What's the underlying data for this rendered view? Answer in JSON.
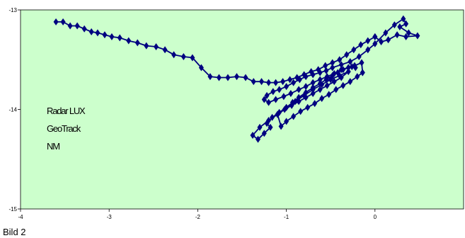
{
  "caption": "Bild 2",
  "chart_data": {
    "type": "scatter",
    "title": "",
    "xlabel": "",
    "ylabel": "",
    "xlim": [
      -4,
      1
    ],
    "ylim": [
      -15,
      -13
    ],
    "x_ticks": [
      -4,
      -3,
      -2,
      -1,
      0
    ],
    "y_ticks": [
      -13,
      -14,
      -15
    ],
    "x_tick_labels": [
      "-4",
      "-3",
      "-2",
      "-1",
      "0"
    ],
    "y_tick_labels": [
      "-13",
      "-14",
      "-15"
    ],
    "grid": false,
    "plot_background": "#ccffcc",
    "series_color": "#000080",
    "annotations": [
      "Radar LUX",
      "GeoTrack",
      "NM"
    ],
    "series": [
      {
        "x": [
          -3.6,
          -3.52,
          -3.44,
          -3.36,
          -3.28,
          -3.2,
          -3.13,
          -3.05,
          -2.97,
          -2.88,
          -2.78,
          -2.68,
          -2.58,
          -2.47,
          -2.37,
          -2.27,
          -2.16,
          -2.06,
          -1.96,
          -1.86,
          -1.76,
          -1.66,
          -1.56,
          -1.46,
          -1.37,
          -1.28,
          -1.2,
          -1.12,
          -1.04,
          -0.96,
          -0.88,
          -0.8,
          -0.72,
          -0.64,
          -0.56,
          -0.48,
          -0.4,
          -0.32,
          -0.24,
          -0.16,
          -0.08,
          0.0
        ],
        "y": [
          -13.12,
          -13.12,
          -13.16,
          -13.16,
          -13.19,
          -13.22,
          -13.23,
          -13.25,
          -13.27,
          -13.28,
          -13.31,
          -13.33,
          -13.36,
          -13.37,
          -13.4,
          -13.45,
          -13.47,
          -13.48,
          -13.58,
          -13.67,
          -13.68,
          -13.68,
          -13.67,
          -13.68,
          -13.72,
          -13.72,
          -13.73,
          -13.73,
          -13.72,
          -13.7,
          -13.68,
          -13.65,
          -13.62,
          -13.6,
          -13.56,
          -13.53,
          -13.5,
          -13.45,
          -13.4,
          -13.35,
          -13.31,
          -13.27
        ]
      },
      {
        "x": [
          0.0,
          0.07,
          0.15,
          0.25,
          0.35,
          0.48,
          0.38,
          0.28,
          0.35,
          0.32,
          0.22,
          0.12,
          0.0,
          -0.08,
          -0.18,
          -0.28,
          -0.38,
          -0.48,
          -0.55,
          -0.62,
          -0.7,
          -0.78,
          -0.85,
          -0.92,
          -1.0,
          -1.08,
          -1.15,
          -1.22,
          -1.25,
          -1.2,
          -1.12,
          -1.03,
          -0.95,
          -0.86,
          -0.78,
          -0.7,
          -0.62,
          -0.54,
          -0.46,
          -0.38,
          -0.3,
          -0.23,
          -0.15,
          -0.14
        ],
        "y": [
          -13.27,
          -13.32,
          -13.3,
          -13.25,
          -13.27,
          -13.26,
          -13.23,
          -13.17,
          -13.14,
          -13.09,
          -13.15,
          -13.23,
          -13.34,
          -13.4,
          -13.47,
          -13.52,
          -13.55,
          -13.58,
          -13.61,
          -13.63,
          -13.65,
          -13.67,
          -13.7,
          -13.73,
          -13.77,
          -13.8,
          -13.82,
          -13.86,
          -13.9,
          -13.93,
          -13.9,
          -13.87,
          -13.84,
          -13.8,
          -13.77,
          -13.73,
          -13.7,
          -13.67,
          -13.64,
          -13.6,
          -13.58,
          -13.56,
          -13.53,
          -13.63
        ]
      },
      {
        "x": [
          -0.14,
          -0.2,
          -0.28,
          -0.36,
          -0.44,
          -0.52,
          -0.6,
          -0.68,
          -0.76,
          -0.84,
          -0.92,
          -1.0,
          -1.06,
          -1.1,
          -1.02,
          -0.94,
          -0.86,
          -0.78,
          -0.7,
          -0.62,
          -0.54,
          -0.46,
          -0.38,
          -0.3,
          -0.4,
          -0.5,
          -0.6,
          -0.7,
          -0.8,
          -0.9,
          -1.0,
          -1.1,
          -1.2,
          -1.3,
          -1.38,
          -1.32,
          -1.25,
          -1.18,
          -1.22,
          -1.16,
          -1.08,
          -1.0,
          -0.93,
          -0.86,
          -0.78,
          -0.7,
          -0.62,
          -0.55,
          -0.48,
          -0.42,
          -0.36,
          -0.3,
          -0.26,
          -0.22
        ],
        "y": [
          -13.63,
          -13.67,
          -13.72,
          -13.76,
          -13.8,
          -13.85,
          -13.89,
          -13.94,
          -13.98,
          -14.02,
          -14.07,
          -14.12,
          -14.17,
          -14.05,
          -14.0,
          -13.96,
          -13.92,
          -13.88,
          -13.84,
          -13.8,
          -13.76,
          -13.72,
          -13.68,
          -13.62,
          -13.66,
          -13.7,
          -13.75,
          -13.8,
          -13.86,
          -13.92,
          -13.98,
          -14.05,
          -14.11,
          -14.18,
          -14.26,
          -14.3,
          -14.24,
          -14.18,
          -14.14,
          -14.08,
          -14.03,
          -13.98,
          -13.93,
          -13.88,
          -13.83,
          -13.78,
          -13.74,
          -13.7,
          -13.66,
          -13.63,
          -13.6,
          -13.58,
          -13.57,
          -13.58
        ]
      }
    ]
  }
}
